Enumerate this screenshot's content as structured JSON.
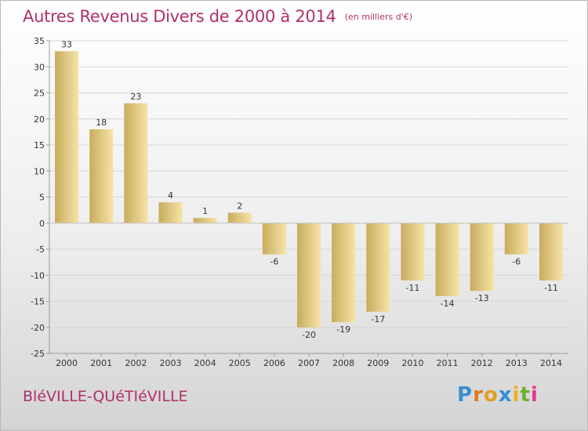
{
  "title": "Autres Revenus Divers de 2000 à 2014",
  "unit_note": "(en milliers d'€)",
  "commune": "BléVILLE-QUéTIéVILLE",
  "logo": {
    "letters": [
      "P",
      "r",
      "o",
      "x",
      "i",
      "t",
      "i"
    ],
    "colors": [
      "#3a8fd0",
      "#e07a1a",
      "#e0a020",
      "#2e8fd6",
      "#f0b020",
      "#70b030",
      "#e03a8a"
    ]
  },
  "colors": {
    "accent": "#b0306a",
    "bar_light": "#f6e4a6",
    "bar_dark": "#c8ac5e",
    "axis": "#999999",
    "grid": "#d6d6d6",
    "text": "#333333"
  },
  "chart_data": {
    "type": "bar",
    "categories": [
      "2000",
      "2001",
      "2002",
      "2003",
      "2004",
      "2005",
      "2006",
      "2007",
      "2008",
      "2009",
      "2010",
      "2011",
      "2012",
      "2013",
      "2014"
    ],
    "values": [
      33,
      18,
      23,
      4,
      1,
      2,
      -6,
      -20,
      -19,
      -17,
      -11,
      -14,
      -13,
      -6,
      -11
    ],
    "data_labels": [
      "33",
      "18",
      "23",
      "4",
      "1",
      "2",
      "-6",
      "-20",
      "-19",
      "-17",
      "-11",
      "-14",
      "-13",
      "-6",
      "-11"
    ],
    "ylim": [
      -25,
      35
    ],
    "yticks": [
      35,
      30,
      25,
      20,
      15,
      10,
      5,
      0,
      -5,
      -10,
      -15,
      -20,
      -25
    ],
    "ytick_labels": [
      "35",
      "30",
      "25",
      "20",
      "15",
      "10",
      "5",
      "0",
      "-5",
      "-10",
      "-15",
      "-20",
      "-25"
    ],
    "grid": true
  }
}
